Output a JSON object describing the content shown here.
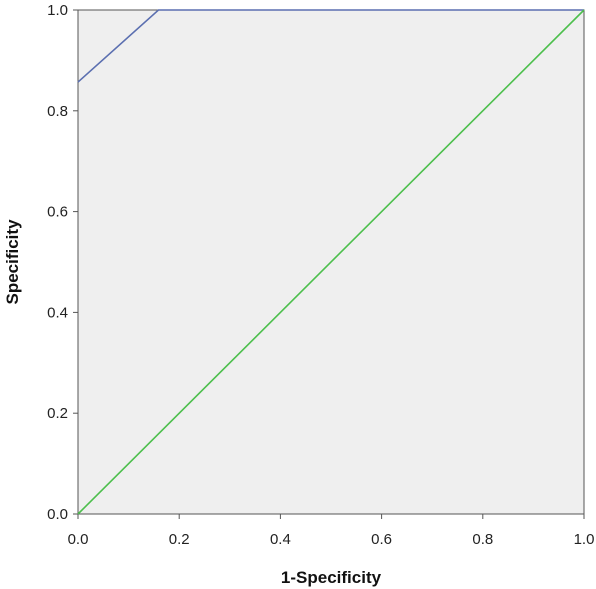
{
  "chart_data": {
    "type": "line",
    "title": "",
    "xlabel": "1-Specificity",
    "ylabel": "Specificity",
    "xlim": [
      0,
      1
    ],
    "ylim": [
      0,
      1
    ],
    "x_ticks": [
      "0.0",
      "0.2",
      "0.4",
      "0.6",
      "0.8",
      "1.0"
    ],
    "y_ticks": [
      "0.0",
      "0.2",
      "0.4",
      "0.6",
      "0.8",
      "1.0"
    ],
    "grid": false,
    "legend": "none",
    "series": [
      {
        "color": "#5b6fb0",
        "points": [
          [
            0.0,
            0.857
          ],
          [
            0.159,
            1.0
          ],
          [
            1.0,
            1.0
          ]
        ]
      },
      {
        "color": "#4cbf4c",
        "points": [
          [
            0.0,
            0.0
          ],
          [
            1.0,
            1.0
          ]
        ]
      }
    ]
  },
  "colors": {
    "plot_background": "#efefef",
    "axis": "#555555"
  }
}
